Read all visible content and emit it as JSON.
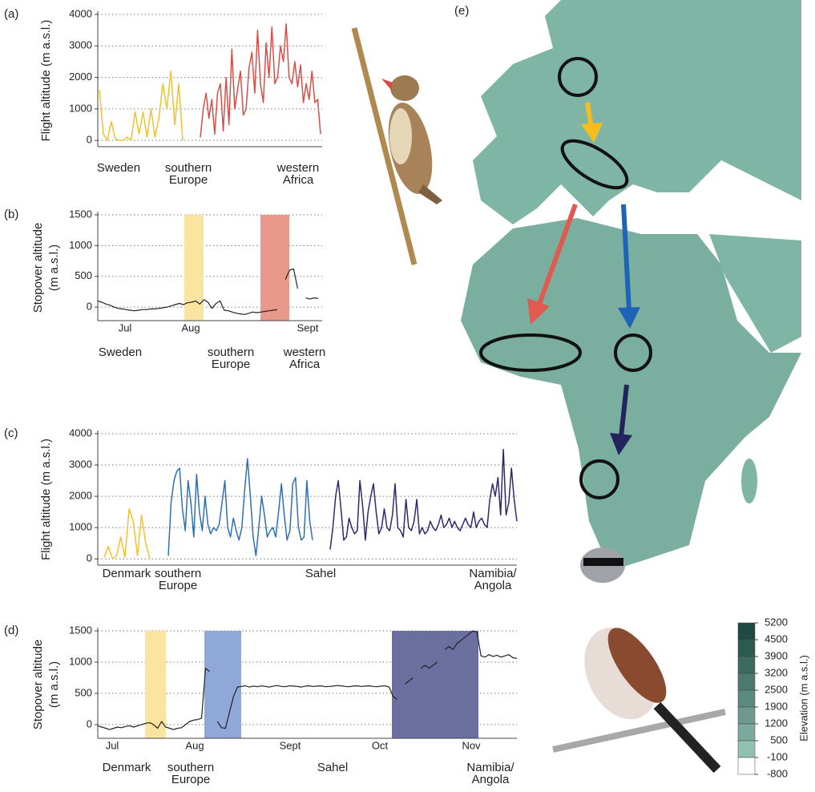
{
  "chart_data": [
    {
      "type": "line",
      "panel": "(a)",
      "ylabel": [
        "Flight altitude (m a.s.l.)"
      ],
      "ylim": [
        -200,
        4000
      ],
      "yticks": [
        0,
        1000,
        2000,
        3000,
        4000
      ],
      "grid": true,
      "region_labels": [
        [
          "Sweden"
        ],
        [
          "southern",
          "Europe"
        ],
        [
          "western",
          "Africa"
        ]
      ],
      "series": [
        {
          "color": "#f2c12e",
          "values": [
            1600,
            200,
            0,
            600,
            50,
            0,
            0,
            100,
            0,
            900,
            200,
            900,
            100,
            1000,
            100,
            700,
            1800,
            1000,
            2200,
            500,
            1800,
            0
          ]
        },
        {
          "color": "#d6504a",
          "values": [
            100,
            1000,
            1500,
            700,
            1300,
            200,
            1500,
            1800,
            300,
            2000,
            500,
            2900,
            1000,
            1600,
            2200,
            800,
            1000,
            2300,
            2800,
            1500,
            3500,
            1800,
            1200,
            3100,
            2000,
            3600,
            1800,
            2000,
            3000,
            2500,
            3700,
            2000,
            1800,
            2500,
            1700,
            2400,
            1200,
            1800,
            1300,
            2200,
            1200,
            1300,
            200
          ]
        }
      ]
    },
    {
      "type": "stopover",
      "panel": "(b)",
      "ylabel": [
        "Stopover altitude",
        "(m a.s.l.)"
      ],
      "ylim": [
        -220,
        1500
      ],
      "yticks": [
        0,
        500,
        1000,
        1500
      ],
      "grid": true,
      "months": [
        "Jul",
        "Aug",
        "Sept"
      ],
      "band_colors": [
        "#fbe3a0",
        "#e8998c"
      ],
      "region_labels": [
        [
          "Sweden"
        ],
        [
          "southern",
          "Europe"
        ],
        [
          "western",
          "Africa"
        ]
      ],
      "series": [
        {
          "color": "#222222",
          "values": [
            100,
            80,
            50,
            30,
            0,
            -20,
            -30,
            -40,
            -50,
            -60,
            -50,
            -40,
            -40,
            -30,
            -30,
            -20,
            -10,
            0,
            20,
            40,
            60,
            40,
            70,
            80,
            100,
            50,
            120,
            80,
            -20,
            60,
            100,
            -50,
            -60,
            -80,
            -100,
            -110,
            -120,
            -100,
            -80,
            -90,
            -80,
            -70,
            -60,
            -50,
            -40,
            null,
            450,
            600,
            620,
            300,
            null,
            150,
            130,
            150,
            140,
            null
          ]
        }
      ]
    },
    {
      "type": "line",
      "panel": "(c)",
      "ylabel": [
        "Flight altitude (m a.s.l.)"
      ],
      "ylim": [
        -200,
        4000
      ],
      "yticks": [
        0,
        1000,
        2000,
        3000,
        4000
      ],
      "grid": true,
      "region_labels": [
        [
          "Denmark"
        ],
        [
          "southern",
          "Europe"
        ],
        [
          "Sahel"
        ],
        [
          "Namibia/",
          "Angola"
        ]
      ],
      "series": [
        {
          "color": "#f2c12e",
          "values": [
            50,
            400,
            0,
            100,
            700,
            50,
            1600,
            1200,
            100,
            1400,
            500,
            0
          ]
        },
        {
          "color": "#2f6fb5",
          "values": [
            100,
            1800,
            2500,
            2800,
            2900,
            1600,
            900,
            2500,
            1800,
            700,
            2700,
            1500,
            900,
            2000,
            1100,
            800,
            1000,
            900,
            1100,
            1800,
            2500,
            1000,
            700,
            1300,
            900,
            600,
            1000,
            2200,
            3200,
            2000,
            700,
            100,
            1000,
            2000,
            1400,
            700,
            900,
            1000,
            700,
            1500,
            2400,
            1400,
            600,
            900,
            2400,
            2600,
            1000,
            600,
            700,
            2500,
            1200,
            600
          ]
        },
        {
          "color": "#2d2a6b",
          "values": [
            300,
            1000,
            2000,
            2500,
            1600,
            600,
            700,
            1300,
            1000,
            800,
            900,
            2500,
            1700,
            600,
            1500,
            2000,
            2400,
            1500,
            800,
            1000,
            1600,
            1000,
            900,
            1400,
            2400,
            1000,
            900,
            700,
            1900,
            1000,
            900,
            1200,
            1900,
            800,
            1000,
            800,
            900,
            1200,
            1000,
            900,
            1100,
            1400,
            1000,
            1100,
            1300,
            1000,
            1200,
            1000,
            900,
            1100,
            1300,
            1100,
            1000,
            1500,
            1000,
            1200,
            1300,
            1100,
            1000,
            1900,
            2400,
            2000,
            2600,
            1400,
            3500,
            1400,
            1800,
            2900,
            1900,
            1200
          ]
        }
      ]
    },
    {
      "type": "stopover",
      "panel": "(d)",
      "ylabel": [
        "Stopover altitude",
        "(m a.s.l.)"
      ],
      "ylim": [
        -220,
        1500
      ],
      "yticks": [
        0,
        500,
        1000,
        1500
      ],
      "grid": true,
      "months": [
        "Jul",
        "Aug",
        "Sept",
        "Oct",
        "Nov"
      ],
      "band_colors": [
        "#fbe3a0",
        "#8fa8d8",
        "#6b6f9f"
      ],
      "region_labels": [
        [
          "Denmark"
        ],
        [
          "southern",
          "Europe"
        ],
        [
          "Sahel"
        ],
        [
          "Namibia/",
          "Angola"
        ]
      ],
      "series": [
        {
          "color": "#222222",
          "values": [
            -20,
            -40,
            -60,
            -80,
            -60,
            -40,
            -50,
            -30,
            -20,
            -40,
            -20,
            0,
            20,
            30,
            0,
            -60,
            50,
            -40,
            -60,
            -80,
            -60,
            -50,
            0,
            50,
            70,
            80,
            100,
            900,
            850,
            null,
            50,
            -50,
            -60,
            200,
            450,
            600,
            610,
            620,
            600,
            615,
            605,
            620,
            610,
            600,
            615,
            625,
            610,
            605,
            620,
            615,
            610,
            600,
            615,
            620,
            610,
            615,
            620,
            605,
            610,
            615,
            625,
            620,
            610,
            605,
            615,
            620,
            610,
            615,
            620,
            610,
            605,
            615,
            620,
            600,
            450,
            400,
            null,
            650,
            700,
            750,
            null,
            900,
            950,
            900,
            950,
            1000,
            null,
            1200,
            1250,
            1200,
            1300,
            1350,
            1400,
            1450,
            1500,
            1480,
            1100,
            1080,
            1120,
            1090,
            1110,
            1080,
            1100,
            1120,
            1070,
            1060
          ]
        }
      ]
    }
  ],
  "map": {
    "label": "(e)",
    "colorbar": {
      "title": "Elevation (m a.s.l.)",
      "ticks": [
        5200,
        4500,
        3900,
        3200,
        2500,
        1900,
        1200,
        500,
        -100,
        -800
      ]
    }
  }
}
